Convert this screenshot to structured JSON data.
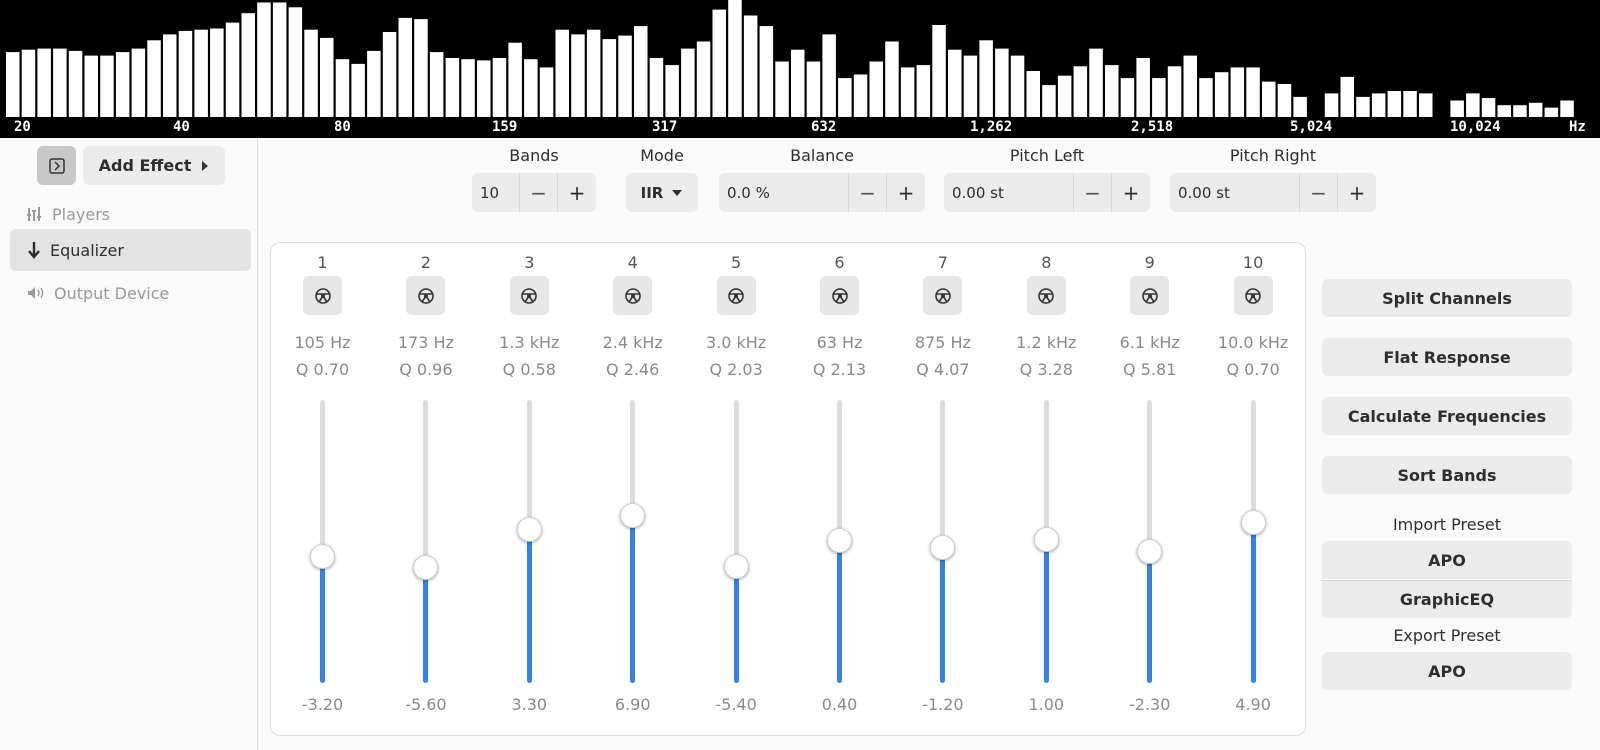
{
  "spectrum": {
    "hz_labels": [
      "20",
      "40",
      "80",
      "159",
      "317",
      "632",
      "1,262",
      "2,518",
      "5,024",
      "10,024",
      "Hz"
    ],
    "levels": [
      0.55,
      0.57,
      0.58,
      0.58,
      0.56,
      0.52,
      0.52,
      0.55,
      0.58,
      0.65,
      0.7,
      0.73,
      0.74,
      0.75,
      0.8,
      0.88,
      0.97,
      0.97,
      0.93,
      0.74,
      0.67,
      0.49,
      0.45,
      0.56,
      0.72,
      0.84,
      0.83,
      0.55,
      0.5,
      0.49,
      0.48,
      0.5,
      0.63,
      0.49,
      0.42,
      0.74,
      0.7,
      0.74,
      0.66,
      0.69,
      0.77,
      0.5,
      0.44,
      0.58,
      0.64,
      0.91,
      1.0,
      0.86,
      0.77,
      0.47,
      0.57,
      0.47,
      0.7,
      0.33,
      0.36,
      0.47,
      0.64,
      0.42,
      0.44,
      0.78,
      0.57,
      0.52,
      0.65,
      0.58,
      0.52,
      0.39,
      0.27,
      0.35,
      0.43,
      0.58,
      0.44,
      0.33,
      0.5,
      0.33,
      0.43,
      0.52,
      0.33,
      0.38,
      0.42,
      0.42,
      0.3,
      0.28,
      0.17,
      0.0,
      0.2,
      0.34,
      0.17,
      0.2,
      0.22,
      0.22,
      0.2,
      0.0,
      0.14,
      0.2,
      0.16,
      0.1,
      0.1,
      0.12,
      0.08,
      0.14
    ]
  },
  "sidebar": {
    "add_effect": "Add Effect",
    "items": [
      {
        "label": "Players",
        "icon": "equalizer-bars-icon"
      },
      {
        "label": "Equalizer",
        "icon": "arrow-down-icon"
      },
      {
        "label": "Output Device",
        "icon": "speaker-icon"
      }
    ]
  },
  "controls": {
    "bands_label": "Bands",
    "bands_value": "10",
    "mode_label": "Mode",
    "mode_value": "IIR",
    "balance_label": "Balance",
    "balance_value": "0.0 %",
    "pitch_left_label": "Pitch Left",
    "pitch_left_value": "0.00 st",
    "pitch_right_label": "Pitch Right",
    "pitch_right_value": "0.00 st",
    "minus": "−",
    "plus": "+"
  },
  "bands": [
    {
      "num": "1",
      "freq": "105 Hz",
      "q": "Q 0.70",
      "gain": "-3.20",
      "level": 0.45
    },
    {
      "num": "2",
      "freq": "173 Hz",
      "q": "Q 0.96",
      "gain": "-5.60",
      "level": 0.41
    },
    {
      "num": "3",
      "freq": "1.3 kHz",
      "q": "Q 0.58",
      "gain": "3.30",
      "level": 0.545
    },
    {
      "num": "4",
      "freq": "2.4 kHz",
      "q": "Q 2.46",
      "gain": "6.90",
      "level": 0.595
    },
    {
      "num": "5",
      "freq": "3.0 kHz",
      "q": "Q 2.03",
      "gain": "-5.40",
      "level": 0.415
    },
    {
      "num": "6",
      "freq": "63 Hz",
      "q": "Q 2.13",
      "gain": "0.40",
      "level": 0.505
    },
    {
      "num": "7",
      "freq": "875 Hz",
      "q": "Q 4.07",
      "gain": "-1.20",
      "level": 0.48
    },
    {
      "num": "8",
      "freq": "1.2 kHz",
      "q": "Q 3.28",
      "gain": "1.00",
      "level": 0.51
    },
    {
      "num": "9",
      "freq": "6.1 kHz",
      "q": "Q 5.81",
      "gain": "-2.30",
      "level": 0.465
    },
    {
      "num": "10",
      "freq": "10.0 kHz",
      "q": "Q 0.70",
      "gain": "4.90",
      "level": 0.57
    }
  ],
  "actions": {
    "split_channels": "Split Channels",
    "flat_response": "Flat Response",
    "calculate_frequencies": "Calculate Frequencies",
    "sort_bands": "Sort Bands",
    "import_label": "Import Preset",
    "import_apo": "APO",
    "import_graphiceq": "GraphicEQ",
    "export_label": "Export Preset",
    "export_apo": "APO"
  },
  "colors": {
    "accent": "#3584e4",
    "spectrum_bg": "#000000",
    "spectrum_bar": "#ffffff"
  }
}
